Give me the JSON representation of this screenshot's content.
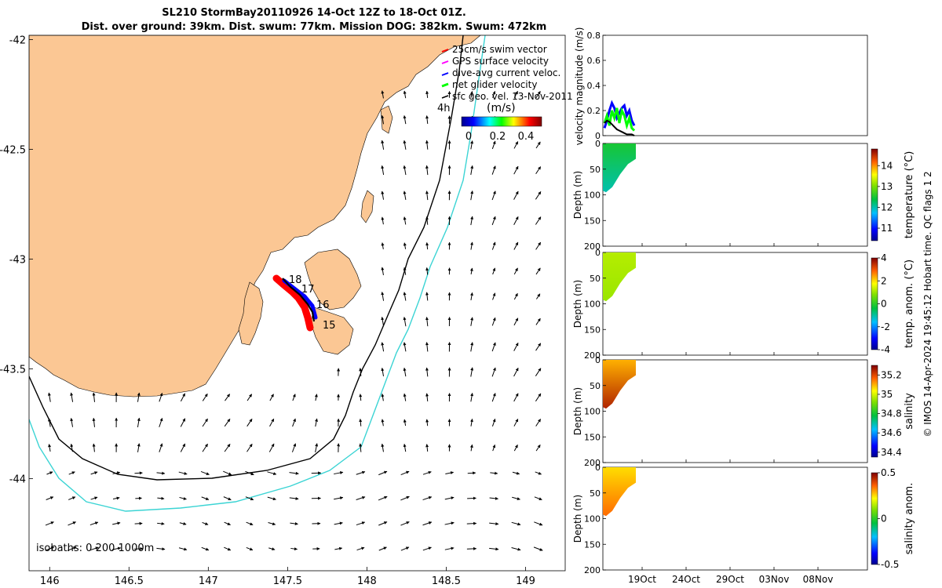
{
  "title": {
    "line1": "SL210 StormBay20110926 14-Oct 12Z to 18-Oct 01Z.",
    "line2": "Dist. over ground: 39km. Dist. swum: 77km. Mission DOG: 382km. Swum: 472km"
  },
  "chart_data": [
    {
      "type": "map",
      "name": "glider-track-map",
      "xlim": [
        145.87,
        149.25
      ],
      "ylim": [
        -44.42,
        -41.98
      ],
      "x_ticks": [
        146,
        146.5,
        147,
        147.5,
        148,
        148.5,
        149
      ],
      "x_tick_labels": [
        "146",
        "146.5",
        "147",
        "147.5",
        "148",
        "148.5",
        "149"
      ],
      "y_ticks": [
        -42,
        -42.5,
        -43,
        -43.5,
        -44
      ],
      "y_tick_labels": [
        "-42",
        "-42.5",
        "-43",
        "-43.5",
        "-44"
      ],
      "legend": [
        {
          "label": "25cm/s swim vector",
          "color": "#ff0000"
        },
        {
          "label": "GPS surface velocity",
          "color": "#ff00ff"
        },
        {
          "label": "dive-avg current veloc.",
          "color": "#0000ff"
        },
        {
          "label": "net glider velocity",
          "color": "#00ff00"
        },
        {
          "label": "sfc geo. vel. 13-Nov-2011",
          "color": "#000000"
        }
      ],
      "speed_colorbar": {
        "label": "(m/s)",
        "ticks": [
          "0",
          "0.2",
          "0.4"
        ],
        "range": [
          0,
          0.5
        ],
        "interval_label": "4h"
      },
      "day_labels": [
        {
          "label": "18",
          "lon": 147.56,
          "lat": -43.1
        },
        {
          "label": "17",
          "lon": 147.6,
          "lat": -43.15
        },
        {
          "label": "16",
          "lon": 147.67,
          "lat": -43.2
        },
        {
          "label": "15",
          "lon": 147.69,
          "lat": -43.3
        }
      ],
      "glider_track": [
        [
          147.44,
          -43.09
        ],
        [
          147.47,
          -43.12
        ],
        [
          147.52,
          -43.16
        ],
        [
          147.56,
          -43.19
        ],
        [
          147.6,
          -43.21
        ],
        [
          147.63,
          -43.24
        ],
        [
          147.65,
          -43.27
        ],
        [
          147.66,
          -43.29
        ]
      ],
      "isobaths_label": "isobaths: 0   200  1000m"
    },
    {
      "type": "line",
      "name": "velocity-magnitude",
      "ylabel": "velocity magnitude (m/s)",
      "ylim": [
        0,
        0.8
      ],
      "y_ticks": [
        "0",
        "0.2",
        "0.4",
        "0.6",
        "0.8"
      ],
      "series": [
        {
          "name": "dive-avg current veloc.",
          "color": "#0000ff",
          "values": [
            0.06,
            0.12,
            0.2,
            0.26,
            0.22,
            0.14,
            0.18,
            0.22,
            0.24,
            0.16,
            0.2,
            0.12,
            0.08
          ]
        },
        {
          "name": "net glider velocity",
          "color": "#00ff00",
          "values": [
            0.1,
            0.16,
            0.08,
            0.2,
            0.14,
            0.22,
            0.1,
            0.2,
            0.16,
            0.08,
            0.14,
            0.06,
            0.04
          ]
        },
        {
          "name": "sfc geo. vel.",
          "color": "#000000",
          "values": [
            0.1,
            0.12,
            0.11,
            0.09,
            0.07,
            0.05,
            0.04,
            0.03,
            0.02,
            0.01,
            0.01,
            0.01,
            0.0
          ]
        }
      ]
    },
    {
      "type": "heatmap",
      "name": "temperature-section",
      "ylabel": "Depth (m)",
      "colorbar_label": "temperature (°C)",
      "colorbar_ticks": [
        "14",
        "13",
        "12",
        "11"
      ],
      "range": [
        10.4,
        14.8
      ],
      "y_ticks": [
        "0",
        "50",
        "100",
        "150",
        "200"
      ],
      "surface_value": 12.5,
      "deep_value": 12.0
    },
    {
      "type": "heatmap",
      "name": "temperature-anomaly-section",
      "ylabel": "Depth (m)",
      "colorbar_label": "temp. anom. (°C)",
      "colorbar_ticks": [
        "4",
        "2",
        "0",
        "-2",
        "-4"
      ],
      "range": [
        -4,
        4
      ],
      "y_ticks": [
        "0",
        "50",
        "100",
        "150",
        "200"
      ],
      "surface_value": 1.2,
      "deep_value": 1.0
    },
    {
      "type": "heatmap",
      "name": "salinity-section",
      "ylabel": "Depth (m)",
      "colorbar_label": "salinity",
      "colorbar_ticks": [
        "35.2",
        "35",
        "34.8",
        "34.6",
        "34.4"
      ],
      "range": [
        34.35,
        35.3
      ],
      "y_ticks": [
        "0",
        "50",
        "100",
        "150",
        "200"
      ],
      "surface_value": 35.1,
      "deep_value": 35.25
    },
    {
      "type": "heatmap",
      "name": "salinity-anomaly-section",
      "ylabel": "Depth (m)",
      "colorbar_label": "salinity anom.",
      "colorbar_ticks": [
        "0.5",
        "0",
        "-0.5"
      ],
      "range": [
        -0.5,
        0.5
      ],
      "y_ticks": [
        "0",
        "50",
        "100",
        "150",
        "200"
      ],
      "surface_value": 0.25,
      "deep_value": 0.35,
      "x_tick_labels": [
        "19Oct",
        "24Oct",
        "29Oct",
        "03Nov",
        "08Nov"
      ]
    }
  ],
  "credit": "© IMOS 14-Apr-2024 19:45:12 Hobart time. QC flags 1  2"
}
